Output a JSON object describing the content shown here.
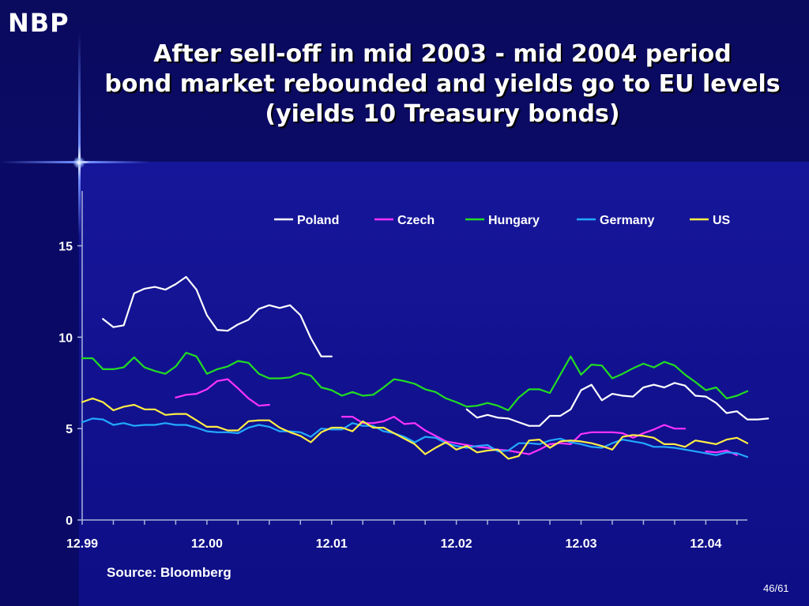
{
  "slide": {
    "logo": "NBP",
    "title_lines": [
      "After sell-off in mid 2003 - mid 2004 period",
      "bond market rebounded and yields go to EU levels",
      "(yields 10 Treasury bonds)"
    ],
    "source": "Source: Bloomberg",
    "page_number": "46/61"
  },
  "chart_data": {
    "type": "line",
    "title": "",
    "xlabel": "",
    "ylabel": "",
    "x_tick_labels": [
      "12.99",
      "12.00",
      "12.01",
      "12.02",
      "12.03",
      "12.04"
    ],
    "y_ticks": [
      0,
      5,
      10,
      15
    ],
    "ylim": [
      0,
      18
    ],
    "legend_position": "top-right",
    "grid": false,
    "x_start": "1999-12",
    "x_end": "2005-04",
    "series": [
      {
        "name": "Poland",
        "color": "#ffffff",
        "segments": [
          {
            "start": "2000-02",
            "values": [
              11.0,
              10.55,
              10.65,
              12.4,
              12.65,
              12.75,
              12.6,
              12.9,
              13.3,
              12.6,
              11.2,
              10.4,
              10.35,
              10.7,
              10.95,
              11.55,
              11.75,
              11.6,
              11.75,
              11.2,
              9.95,
              8.95,
              8.95
            ]
          },
          {
            "start": "2003-01",
            "values": [
              6.05,
              5.6,
              5.75,
              5.6,
              5.55,
              5.35,
              5.15,
              5.15,
              5.7,
              5.7,
              6.05,
              7.1,
              7.4,
              6.55,
              6.9,
              6.8,
              6.75,
              7.25,
              7.4,
              7.25,
              7.5,
              7.35,
              6.8,
              6.75,
              6.4,
              5.85,
              5.95,
              5.5,
              5.5,
              5.55
            ]
          }
        ]
      },
      {
        "name": "Czech",
        "color": "#ff33ff",
        "segments": [
          {
            "start": "2000-09",
            "values": [
              6.7,
              6.85,
              6.9,
              7.15,
              7.6,
              7.7,
              7.2,
              6.65,
              6.25,
              6.3
            ]
          },
          {
            "start": "2002-01",
            "values": [
              5.65,
              5.65,
              5.3,
              5.3,
              5.4,
              5.65,
              5.25,
              5.3,
              4.9,
              4.6,
              4.3,
              4.2,
              4.1,
              4.0,
              3.95,
              3.85,
              3.8,
              3.7,
              3.6,
              3.85,
              4.15,
              4.2,
              4.15,
              4.7,
              4.8,
              4.8,
              4.8,
              4.75,
              4.5,
              4.75,
              4.95,
              5.2,
              5.0,
              5.0
            ]
          },
          {
            "start": "2004-12",
            "values": [
              3.75,
              3.7,
              3.8,
              3.55
            ]
          }
        ]
      },
      {
        "name": "Hungary",
        "color": "#22dd22",
        "segments": [
          {
            "start": "1999-12",
            "values": [
              8.85,
              8.85,
              8.25,
              8.25,
              8.35,
              8.9,
              8.35,
              8.15,
              8.0,
              8.4,
              9.15,
              8.95,
              8.0,
              8.25,
              8.4,
              8.7,
              8.6,
              8.0,
              7.75,
              7.75,
              7.8,
              8.05,
              7.9,
              7.25,
              7.1,
              6.8,
              7.0,
              6.8,
              6.85,
              7.25,
              7.7,
              7.6,
              7.45,
              7.15,
              7.0,
              6.65,
              6.45,
              6.2,
              6.25,
              6.4,
              6.25,
              6.0,
              6.7,
              7.15,
              7.15,
              6.95,
              7.95,
              8.95,
              7.95,
              8.5,
              8.45,
              7.75,
              8.0,
              8.3,
              8.55,
              8.35,
              8.65,
              8.45,
              7.95,
              7.55,
              7.1,
              7.25,
              6.65,
              6.8,
              7.05
            ]
          }
        ]
      },
      {
        "name": "Germany",
        "color": "#22aaff",
        "segments": [
          {
            "start": "1999-12",
            "values": [
              5.35,
              5.55,
              5.5,
              5.2,
              5.3,
              5.15,
              5.2,
              5.2,
              5.3,
              5.2,
              5.2,
              5.05,
              4.85,
              4.8,
              4.8,
              4.75,
              5.05,
              5.2,
              5.1,
              4.85,
              4.85,
              4.8,
              4.55,
              5.0,
              4.95,
              4.95,
              5.3,
              5.15,
              5.15,
              4.85,
              4.75,
              4.55,
              4.25,
              4.55,
              4.5,
              4.2,
              4.05,
              3.95,
              4.05,
              4.1,
              3.75,
              3.8,
              4.2,
              4.2,
              4.15,
              4.35,
              4.45,
              4.25,
              4.15,
              4.0,
              3.95,
              4.2,
              4.4,
              4.3,
              4.2,
              4.0,
              4.0,
              3.95,
              3.85,
              3.75,
              3.65,
              3.55,
              3.7,
              3.65,
              3.45
            ]
          }
        ]
      },
      {
        "name": "US",
        "color": "#ffee44",
        "segments": [
          {
            "start": "1999-12",
            "values": [
              6.45,
              6.65,
              6.45,
              6.0,
              6.2,
              6.3,
              6.05,
              6.05,
              5.75,
              5.8,
              5.8,
              5.45,
              5.1,
              5.1,
              4.9,
              4.9,
              5.4,
              5.45,
              5.45,
              5.05,
              4.8,
              4.6,
              4.25,
              4.8,
              5.05,
              5.05,
              4.85,
              5.4,
              5.05,
              5.05,
              4.75,
              4.45,
              4.15,
              3.6,
              3.95,
              4.25,
              3.85,
              4.05,
              3.7,
              3.8,
              3.85,
              3.35,
              3.5,
              4.35,
              4.4,
              3.95,
              4.3,
              4.35,
              4.3,
              4.2,
              4.05,
              3.85,
              4.55,
              4.65,
              4.6,
              4.5,
              4.15,
              4.15,
              4.0,
              4.35,
              4.25,
              4.15,
              4.4,
              4.5,
              4.2
            ]
          }
        ]
      }
    ]
  }
}
